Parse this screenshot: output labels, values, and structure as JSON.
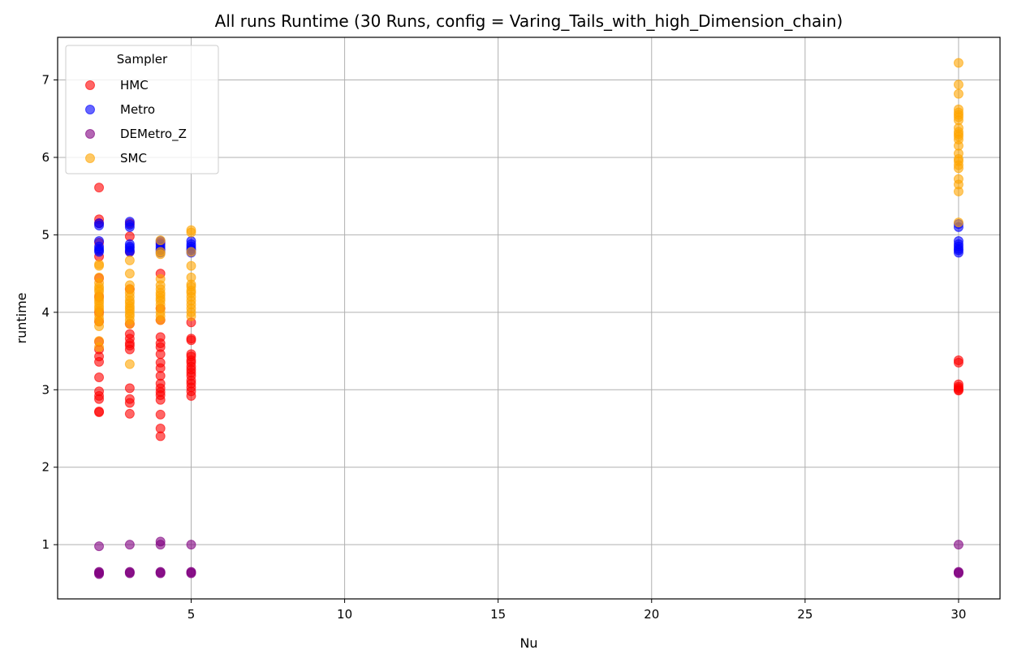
{
  "chart_data": {
    "type": "scatter",
    "title": "All runs Runtime (30 Runs, config = Varing_Tails_with_high_Dimension_chain)",
    "xlabel": "Nu",
    "ylabel": "runtime",
    "xlim": [
      0.65,
      31.35
    ],
    "ylim": [
      0.3,
      7.55
    ],
    "xticks": [
      5,
      10,
      15,
      20,
      25,
      30
    ],
    "yticks": [
      1,
      2,
      3,
      4,
      5,
      6,
      7
    ],
    "grid": true,
    "legend": {
      "title": "Sampler",
      "position": "top-left"
    },
    "series": [
      {
        "name": "HMC",
        "color": "#ff0000",
        "points": [
          [
            2,
            5.61
          ],
          [
            2,
            5.2
          ],
          [
            2,
            5.15
          ],
          [
            2,
            4.9
          ],
          [
            2,
            4.72
          ],
          [
            2,
            4.44
          ],
          [
            2,
            4.2
          ],
          [
            2,
            4.0
          ],
          [
            2,
            3.88
          ],
          [
            2,
            3.62
          ],
          [
            2,
            3.52
          ],
          [
            2,
            3.43
          ],
          [
            2,
            3.36
          ],
          [
            2,
            3.16
          ],
          [
            2,
            2.98
          ],
          [
            2,
            2.92
          ],
          [
            2,
            2.88
          ],
          [
            2,
            2.72
          ],
          [
            2,
            2.71
          ],
          [
            3,
            5.15
          ],
          [
            3,
            4.98
          ],
          [
            3,
            4.78
          ],
          [
            3,
            4.3
          ],
          [
            3,
            3.85
          ],
          [
            3,
            3.72
          ],
          [
            3,
            3.66
          ],
          [
            3,
            3.6
          ],
          [
            3,
            3.57
          ],
          [
            3,
            3.52
          ],
          [
            3,
            3.02
          ],
          [
            3,
            2.88
          ],
          [
            3,
            2.83
          ],
          [
            3,
            2.69
          ],
          [
            4,
            4.9
          ],
          [
            4,
            4.5
          ],
          [
            4,
            4.05
          ],
          [
            4,
            3.9
          ],
          [
            4,
            3.68
          ],
          [
            4,
            3.6
          ],
          [
            4,
            3.55
          ],
          [
            4,
            3.46
          ],
          [
            4,
            3.35
          ],
          [
            4,
            3.28
          ],
          [
            4,
            3.18
          ],
          [
            4,
            3.08
          ],
          [
            4,
            3.02
          ],
          [
            4,
            2.97
          ],
          [
            4,
            2.93
          ],
          [
            4,
            2.87
          ],
          [
            4,
            2.68
          ],
          [
            4,
            2.5
          ],
          [
            4,
            2.4
          ],
          [
            5,
            3.87
          ],
          [
            5,
            3.66
          ],
          [
            5,
            3.64
          ],
          [
            5,
            3.46
          ],
          [
            5,
            3.43
          ],
          [
            5,
            3.38
          ],
          [
            5,
            3.35
          ],
          [
            5,
            3.3
          ],
          [
            5,
            3.26
          ],
          [
            5,
            3.22
          ],
          [
            5,
            3.18
          ],
          [
            5,
            3.12
          ],
          [
            5,
            3.08
          ],
          [
            5,
            3.03
          ],
          [
            5,
            2.98
          ],
          [
            5,
            2.92
          ],
          [
            30,
            3.38
          ],
          [
            30,
            3.35
          ],
          [
            30,
            3.07
          ],
          [
            30,
            3.04
          ],
          [
            30,
            3.02
          ],
          [
            30,
            3.0
          ],
          [
            30,
            2.99
          ]
        ]
      },
      {
        "name": "Metro",
        "color": "#0000ff",
        "points": [
          [
            2,
            5.15
          ],
          [
            2,
            5.12
          ],
          [
            2,
            4.92
          ],
          [
            2,
            4.85
          ],
          [
            2,
            4.82
          ],
          [
            2,
            4.8
          ],
          [
            2,
            4.78
          ],
          [
            3,
            5.17
          ],
          [
            3,
            5.13
          ],
          [
            3,
            5.1
          ],
          [
            3,
            4.88
          ],
          [
            3,
            4.85
          ],
          [
            3,
            4.83
          ],
          [
            3,
            4.8
          ],
          [
            3,
            4.78
          ],
          [
            4,
            4.92
          ],
          [
            4,
            4.88
          ],
          [
            4,
            4.85
          ],
          [
            4,
            4.82
          ],
          [
            4,
            4.8
          ],
          [
            4,
            4.77
          ],
          [
            5,
            4.92
          ],
          [
            5,
            4.88
          ],
          [
            5,
            4.85
          ],
          [
            5,
            4.82
          ],
          [
            5,
            4.8
          ],
          [
            5,
            4.77
          ],
          [
            30,
            5.14
          ],
          [
            30,
            5.1
          ],
          [
            30,
            4.92
          ],
          [
            30,
            4.88
          ],
          [
            30,
            4.85
          ],
          [
            30,
            4.82
          ],
          [
            30,
            4.8
          ],
          [
            30,
            4.77
          ]
        ]
      },
      {
        "name": "DEMetro_Z",
        "color": "#800080",
        "points": [
          [
            2,
            0.98
          ],
          [
            2,
            0.65
          ],
          [
            2,
            0.64
          ],
          [
            2,
            0.63
          ],
          [
            2,
            0.62
          ],
          [
            3,
            1.0
          ],
          [
            3,
            0.65
          ],
          [
            3,
            0.64
          ],
          [
            3,
            0.63
          ],
          [
            4,
            1.04
          ],
          [
            4,
            1.0
          ],
          [
            4,
            0.65
          ],
          [
            4,
            0.64
          ],
          [
            4,
            0.63
          ],
          [
            5,
            1.0
          ],
          [
            5,
            0.65
          ],
          [
            5,
            0.64
          ],
          [
            5,
            0.63
          ],
          [
            30,
            1.0
          ],
          [
            30,
            0.65
          ],
          [
            30,
            0.64
          ],
          [
            30,
            0.63
          ]
        ]
      },
      {
        "name": "SMC",
        "color": "#ffa500",
        "points": [
          [
            2,
            4.62
          ],
          [
            2,
            4.6
          ],
          [
            2,
            4.45
          ],
          [
            2,
            4.38
          ],
          [
            2,
            4.33
          ],
          [
            2,
            4.3
          ],
          [
            2,
            4.27
          ],
          [
            2,
            4.22
          ],
          [
            2,
            4.18
          ],
          [
            2,
            4.15
          ],
          [
            2,
            4.12
          ],
          [
            2,
            4.08
          ],
          [
            2,
            4.05
          ],
          [
            2,
            4.02
          ],
          [
            2,
            3.97
          ],
          [
            2,
            3.92
          ],
          [
            2,
            3.88
          ],
          [
            2,
            3.82
          ],
          [
            2,
            3.63
          ],
          [
            2,
            3.55
          ],
          [
            3,
            4.67
          ],
          [
            3,
            4.5
          ],
          [
            3,
            4.35
          ],
          [
            3,
            4.3
          ],
          [
            3,
            4.25
          ],
          [
            3,
            4.2
          ],
          [
            3,
            4.15
          ],
          [
            3,
            4.12
          ],
          [
            3,
            4.08
          ],
          [
            3,
            4.05
          ],
          [
            3,
            4.02
          ],
          [
            3,
            3.98
          ],
          [
            3,
            3.95
          ],
          [
            3,
            3.9
          ],
          [
            3,
            3.85
          ],
          [
            3,
            3.33
          ],
          [
            4,
            4.93
          ],
          [
            4,
            4.78
          ],
          [
            4,
            4.75
          ],
          [
            4,
            4.43
          ],
          [
            4,
            4.35
          ],
          [
            4,
            4.3
          ],
          [
            4,
            4.25
          ],
          [
            4,
            4.22
          ],
          [
            4,
            4.18
          ],
          [
            4,
            4.15
          ],
          [
            4,
            4.1
          ],
          [
            4,
            4.05
          ],
          [
            4,
            4.0
          ],
          [
            4,
            3.95
          ],
          [
            4,
            3.9
          ],
          [
            5,
            5.06
          ],
          [
            5,
            5.03
          ],
          [
            5,
            4.78
          ],
          [
            5,
            4.6
          ],
          [
            5,
            4.45
          ],
          [
            5,
            4.36
          ],
          [
            5,
            4.33
          ],
          [
            5,
            4.28
          ],
          [
            5,
            4.25
          ],
          [
            5,
            4.2
          ],
          [
            5,
            4.15
          ],
          [
            5,
            4.1
          ],
          [
            5,
            4.05
          ],
          [
            5,
            4.0
          ],
          [
            5,
            3.95
          ],
          [
            30,
            7.22
          ],
          [
            30,
            6.94
          ],
          [
            30,
            6.82
          ],
          [
            30,
            6.62
          ],
          [
            30,
            6.58
          ],
          [
            30,
            6.55
          ],
          [
            30,
            6.52
          ],
          [
            30,
            6.48
          ],
          [
            30,
            6.38
          ],
          [
            30,
            6.33
          ],
          [
            30,
            6.3
          ],
          [
            30,
            6.27
          ],
          [
            30,
            6.23
          ],
          [
            30,
            6.15
          ],
          [
            30,
            6.05
          ],
          [
            30,
            5.98
          ],
          [
            30,
            5.95
          ],
          [
            30,
            5.9
          ],
          [
            30,
            5.86
          ],
          [
            30,
            5.72
          ],
          [
            30,
            5.65
          ],
          [
            30,
            5.56
          ],
          [
            30,
            5.16
          ]
        ]
      }
    ]
  }
}
